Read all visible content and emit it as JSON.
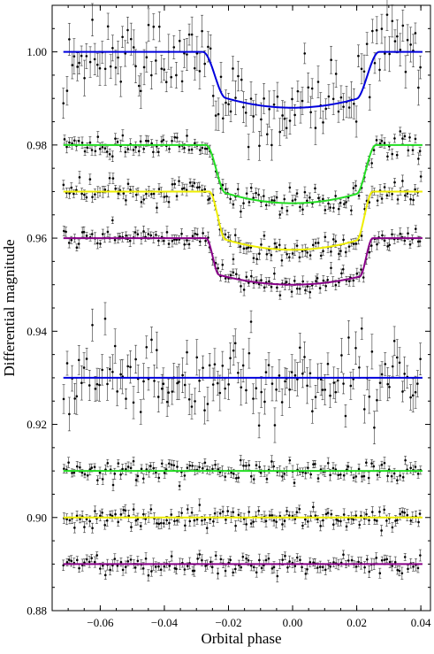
{
  "chart_data": {
    "type": "scatter",
    "title": "",
    "xlabel": "Orbital phase",
    "ylabel": "Differential magnitude",
    "xlim": [
      -0.075,
      0.043
    ],
    "ylim": [
      0.88,
      1.01
    ],
    "x_ticks": [
      -0.06,
      -0.04,
      -0.02,
      0.0,
      0.02,
      0.04
    ],
    "x_tick_labels": [
      "−0.06",
      "−0.04",
      "−0.02",
      "0.00",
      "0.02",
      "0.04"
    ],
    "y_ticks": [
      0.88,
      0.9,
      0.92,
      0.94,
      0.96,
      0.98,
      1.0
    ],
    "y_tick_labels": [
      "0.88",
      "0.90",
      "0.92",
      "0.94",
      "0.96",
      "0.98",
      "1.00"
    ],
    "grid": false,
    "legend": "none",
    "phase_range": [
      -0.0715,
      0.0405
    ],
    "points_per_series": 140,
    "series": [
      {
        "kind": "transit",
        "baseline": 1.0,
        "depth": 0.012,
        "ingress_start": -0.028,
        "ingress_end": -0.021,
        "egress_start": 0.02,
        "egress_end": 0.027,
        "scatter": 0.004,
        "error": 0.003,
        "model_color": "#0000dd"
      },
      {
        "kind": "transit",
        "baseline": 0.98,
        "depth": 0.0125,
        "ingress_start": -0.027,
        "ingress_end": -0.021,
        "egress_start": 0.02,
        "egress_end": 0.026,
        "scatter": 0.0012,
        "error": 0.001,
        "model_color": "#22dd22"
      },
      {
        "kind": "transit",
        "baseline": 0.97,
        "depth": 0.0125,
        "ingress_start": -0.026,
        "ingress_end": -0.021,
        "egress_start": 0.02,
        "egress_end": 0.025,
        "scatter": 0.0012,
        "error": 0.001,
        "model_color": "#eeee00"
      },
      {
        "kind": "transit",
        "baseline": 0.96,
        "depth": 0.01,
        "ingress_start": -0.027,
        "ingress_end": -0.023,
        "egress_start": 0.021,
        "egress_end": 0.025,
        "scatter": 0.0011,
        "error": 0.001,
        "model_color": "#880088"
      },
      {
        "kind": "residual",
        "baseline": 0.93,
        "scatter": 0.004,
        "error": 0.003,
        "model_color": "#0000dd"
      },
      {
        "kind": "residual",
        "baseline": 0.91,
        "scatter": 0.0011,
        "error": 0.001,
        "model_color": "#22dd22"
      },
      {
        "kind": "residual",
        "baseline": 0.9,
        "scatter": 0.0011,
        "error": 0.001,
        "model_color": "#eeee00"
      },
      {
        "kind": "residual",
        "baseline": 0.89,
        "scatter": 0.0011,
        "error": 0.001,
        "model_color": "#880088"
      }
    ],
    "colors": {
      "points": "#000000",
      "errorbars": "#333333",
      "axes": "#000000"
    }
  }
}
